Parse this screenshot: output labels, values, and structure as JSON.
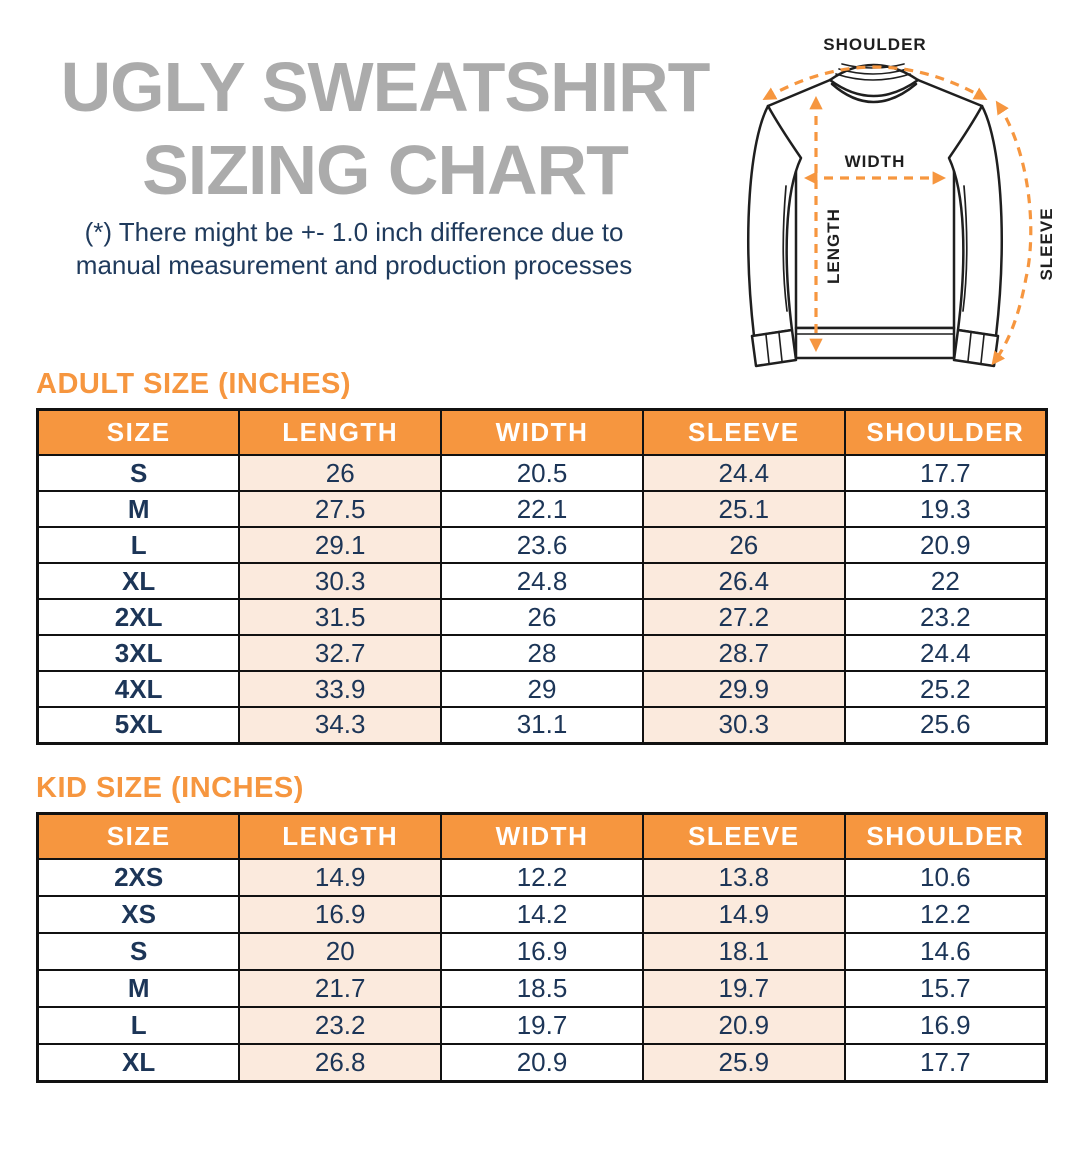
{
  "header": {
    "title_line1": "UGLY SWEATSHIRT",
    "title_line2": "SIZING CHART",
    "disclaimer_line1": "(*) There might be +- 1.0 inch difference due to",
    "disclaimer_line2": "manual measurement and production processes"
  },
  "diagram": {
    "shoulder_label": "SHOULDER",
    "width_label": "WIDTH",
    "length_label": "LENGTH",
    "sleeve_label": "SLEEVE"
  },
  "colors": {
    "accent_orange": "#F6963F",
    "peach_cell": "#FBEADD",
    "navy_text": "#1C3557",
    "title_gray": "#ABABAB",
    "border_black": "#111111"
  },
  "adult_table": {
    "title": "ADULT SIZE (INCHES)",
    "headers": [
      "SIZE",
      "LENGTH",
      "WIDTH",
      "SLEEVE",
      "SHOULDER"
    ],
    "rows": [
      [
        "S",
        "26",
        "20.5",
        "24.4",
        "17.7"
      ],
      [
        "M",
        "27.5",
        "22.1",
        "25.1",
        "19.3"
      ],
      [
        "L",
        "29.1",
        "23.6",
        "26",
        "20.9"
      ],
      [
        "XL",
        "30.3",
        "24.8",
        "26.4",
        "22"
      ],
      [
        "2XL",
        "31.5",
        "26",
        "27.2",
        "23.2"
      ],
      [
        "3XL",
        "32.7",
        "28",
        "28.7",
        "24.4"
      ],
      [
        "4XL",
        "33.9",
        "29",
        "29.9",
        "25.2"
      ],
      [
        "5XL",
        "34.3",
        "31.1",
        "30.3",
        "25.6"
      ]
    ]
  },
  "kid_table": {
    "title": "KID SIZE (INCHES)",
    "headers": [
      "SIZE",
      "LENGTH",
      "WIDTH",
      "SLEEVE",
      "SHOULDER"
    ],
    "rows": [
      [
        "2XS",
        "14.9",
        "12.2",
        "13.8",
        "10.6"
      ],
      [
        "XS",
        "16.9",
        "14.2",
        "14.9",
        "12.2"
      ],
      [
        "S",
        "20",
        "16.9",
        "18.1",
        "14.6"
      ],
      [
        "M",
        "21.7",
        "18.5",
        "19.7",
        "15.7"
      ],
      [
        "L",
        "23.2",
        "19.7",
        "20.9",
        "16.9"
      ],
      [
        "XL",
        "26.8",
        "20.9",
        "25.9",
        "17.7"
      ]
    ]
  }
}
